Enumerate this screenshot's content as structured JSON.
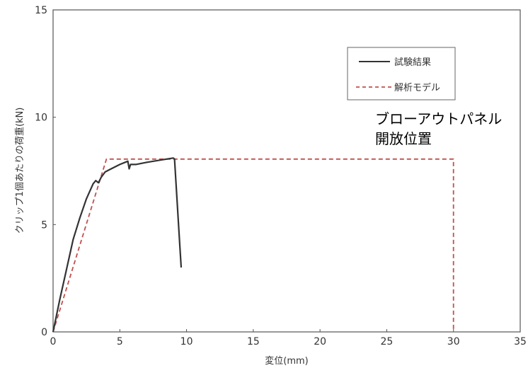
{
  "chart_data": {
    "type": "line",
    "xlabel": "変位(mm)",
    "ylabel": "クリップ1個あたりの荷重(kN)",
    "xlim": [
      0,
      35
    ],
    "ylim": [
      0,
      15
    ],
    "xticks": [
      0,
      5,
      10,
      15,
      20,
      25,
      30,
      35
    ],
    "yticks": [
      0,
      5,
      10,
      15
    ],
    "grid": false,
    "legend": "top-right",
    "series": [
      {
        "name": "試験結果",
        "style": "solid",
        "color": "#333333",
        "x": [
          0,
          0.5,
          1.0,
          1.5,
          2.0,
          2.5,
          3.0,
          3.2,
          3.4,
          3.6,
          3.9,
          4.2,
          5.0,
          5.6,
          5.7,
          5.8,
          6.2,
          7.0,
          8.0,
          9.0,
          9.1,
          9.3,
          9.5,
          9.6
        ],
        "y": [
          0,
          1.5,
          2.9,
          4.3,
          5.3,
          6.2,
          6.9,
          7.05,
          6.95,
          7.2,
          7.45,
          7.55,
          7.8,
          7.95,
          7.6,
          7.8,
          7.8,
          7.9,
          8.0,
          8.1,
          8.05,
          6.0,
          4.0,
          3.0
        ]
      },
      {
        "name": "解析モデル",
        "style": "dashed",
        "color": "#c0504d",
        "x": [
          0,
          4.0,
          30.0,
          30.0
        ],
        "y": [
          0,
          8.05,
          8.05,
          0
        ]
      }
    ],
    "annotations": [
      {
        "text": "ブローアウトパネル"
      },
      {
        "text": "開放位置"
      }
    ]
  }
}
